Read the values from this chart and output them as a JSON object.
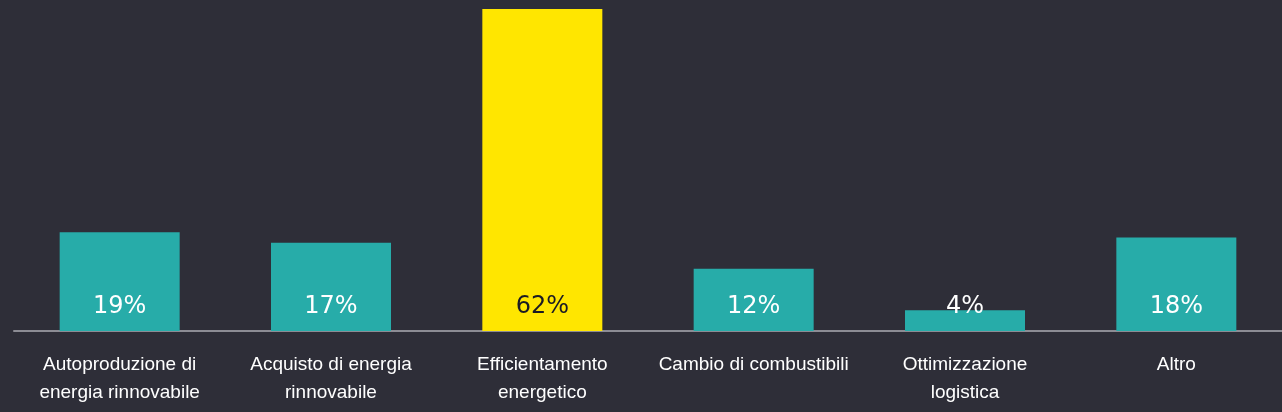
{
  "chart_data": {
    "type": "bar",
    "categories": [
      "Autoproduzione di\nenergia rinnovabile",
      "Acquisto di energia\nrinnovabile",
      "Efficientamento\nenergetico",
      "Cambio di combustibili",
      "Ottimizzazione\nlogistica",
      "Altro"
    ],
    "values": [
      19,
      17,
      62,
      12,
      4,
      18
    ],
    "colors": [
      "#27aca9",
      "#27aca9",
      "#ffe600",
      "#27aca9",
      "#27aca9",
      "#27aca9"
    ],
    "value_labels": [
      "19%",
      "17%",
      "62%",
      "12%",
      "4%",
      "18%"
    ]
  }
}
